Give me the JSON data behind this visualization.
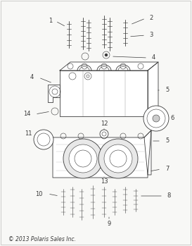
{
  "bg_color": "#f8f8f6",
  "line_color": "#3a3a3a",
  "copyright_text": "© 2013 Polaris Sales Inc.",
  "fig_width": 2.73,
  "fig_height": 3.49,
  "dpi": 100
}
